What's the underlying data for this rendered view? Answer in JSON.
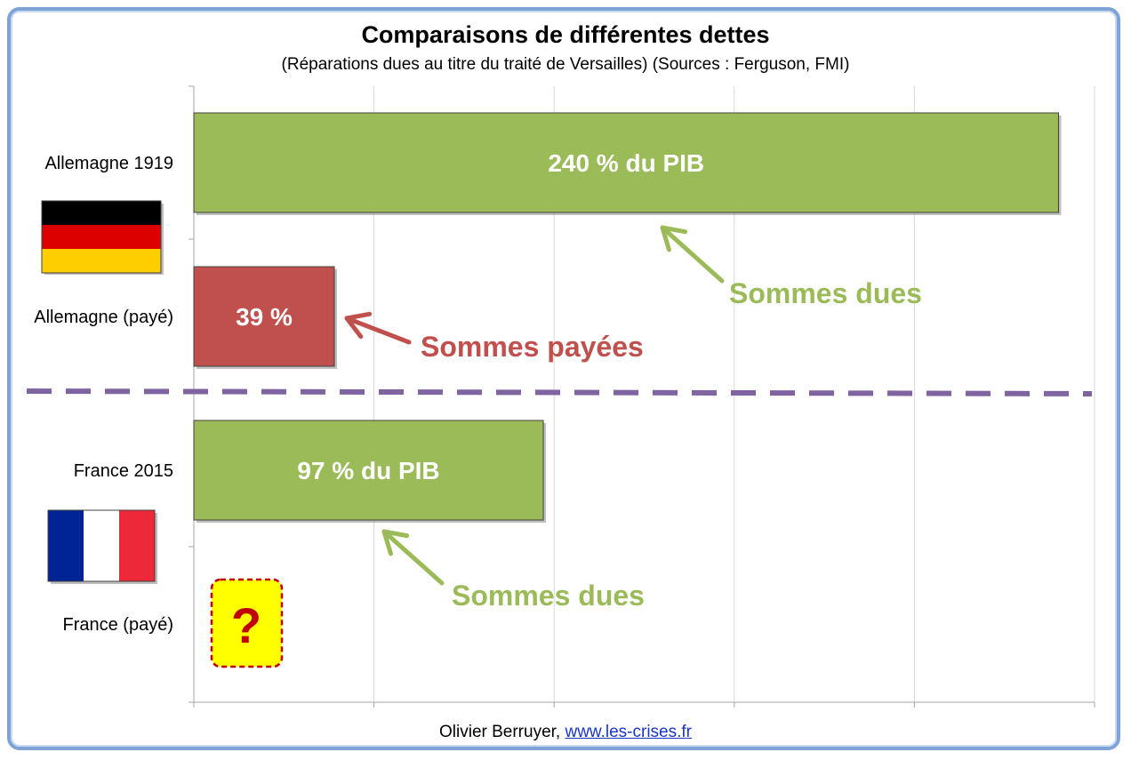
{
  "chart_data": {
    "type": "bar",
    "orientation": "horizontal",
    "title": "Comparaisons de différentes dettes",
    "subtitle": "(Réparations dues au titre du traité de Versailles) (Sources : Ferguson, FMI)",
    "categories": [
      "Allemagne 1919",
      "Allemagne (payé)",
      "France 2015",
      "France (payé)"
    ],
    "values": [
      240,
      39,
      97,
      null
    ],
    "bar_labels": [
      "240 % du PIB",
      "39 %",
      "97 % du PIB",
      ""
    ],
    "bar_colors": [
      "#9bbb59",
      "#c0504d",
      "#9bbb59",
      ""
    ],
    "xlim": [
      0,
      250
    ],
    "grid": true,
    "unknown_marker": "?",
    "annotations": [
      {
        "text": "Sommes dues",
        "color": "#9bbb59",
        "target": "Allemagne 1919"
      },
      {
        "text": "Sommes payées",
        "color": "#c0504d",
        "target": "Allemagne (payé)"
      },
      {
        "text": "Sommes dues",
        "color": "#9bbb59",
        "target": "France 2015"
      }
    ],
    "separator_color": "#8064a2"
  },
  "flags": [
    {
      "name": "germany-flag",
      "stripes": [
        "#000000",
        "#dd0000",
        "#ffce00"
      ]
    },
    {
      "name": "france-flag",
      "stripes": [
        "#002395",
        "#ffffff",
        "#ed2939"
      ]
    }
  ],
  "footer": {
    "author": "Olivier Berruyer,",
    "link_text": "www.les-crises.fr"
  }
}
